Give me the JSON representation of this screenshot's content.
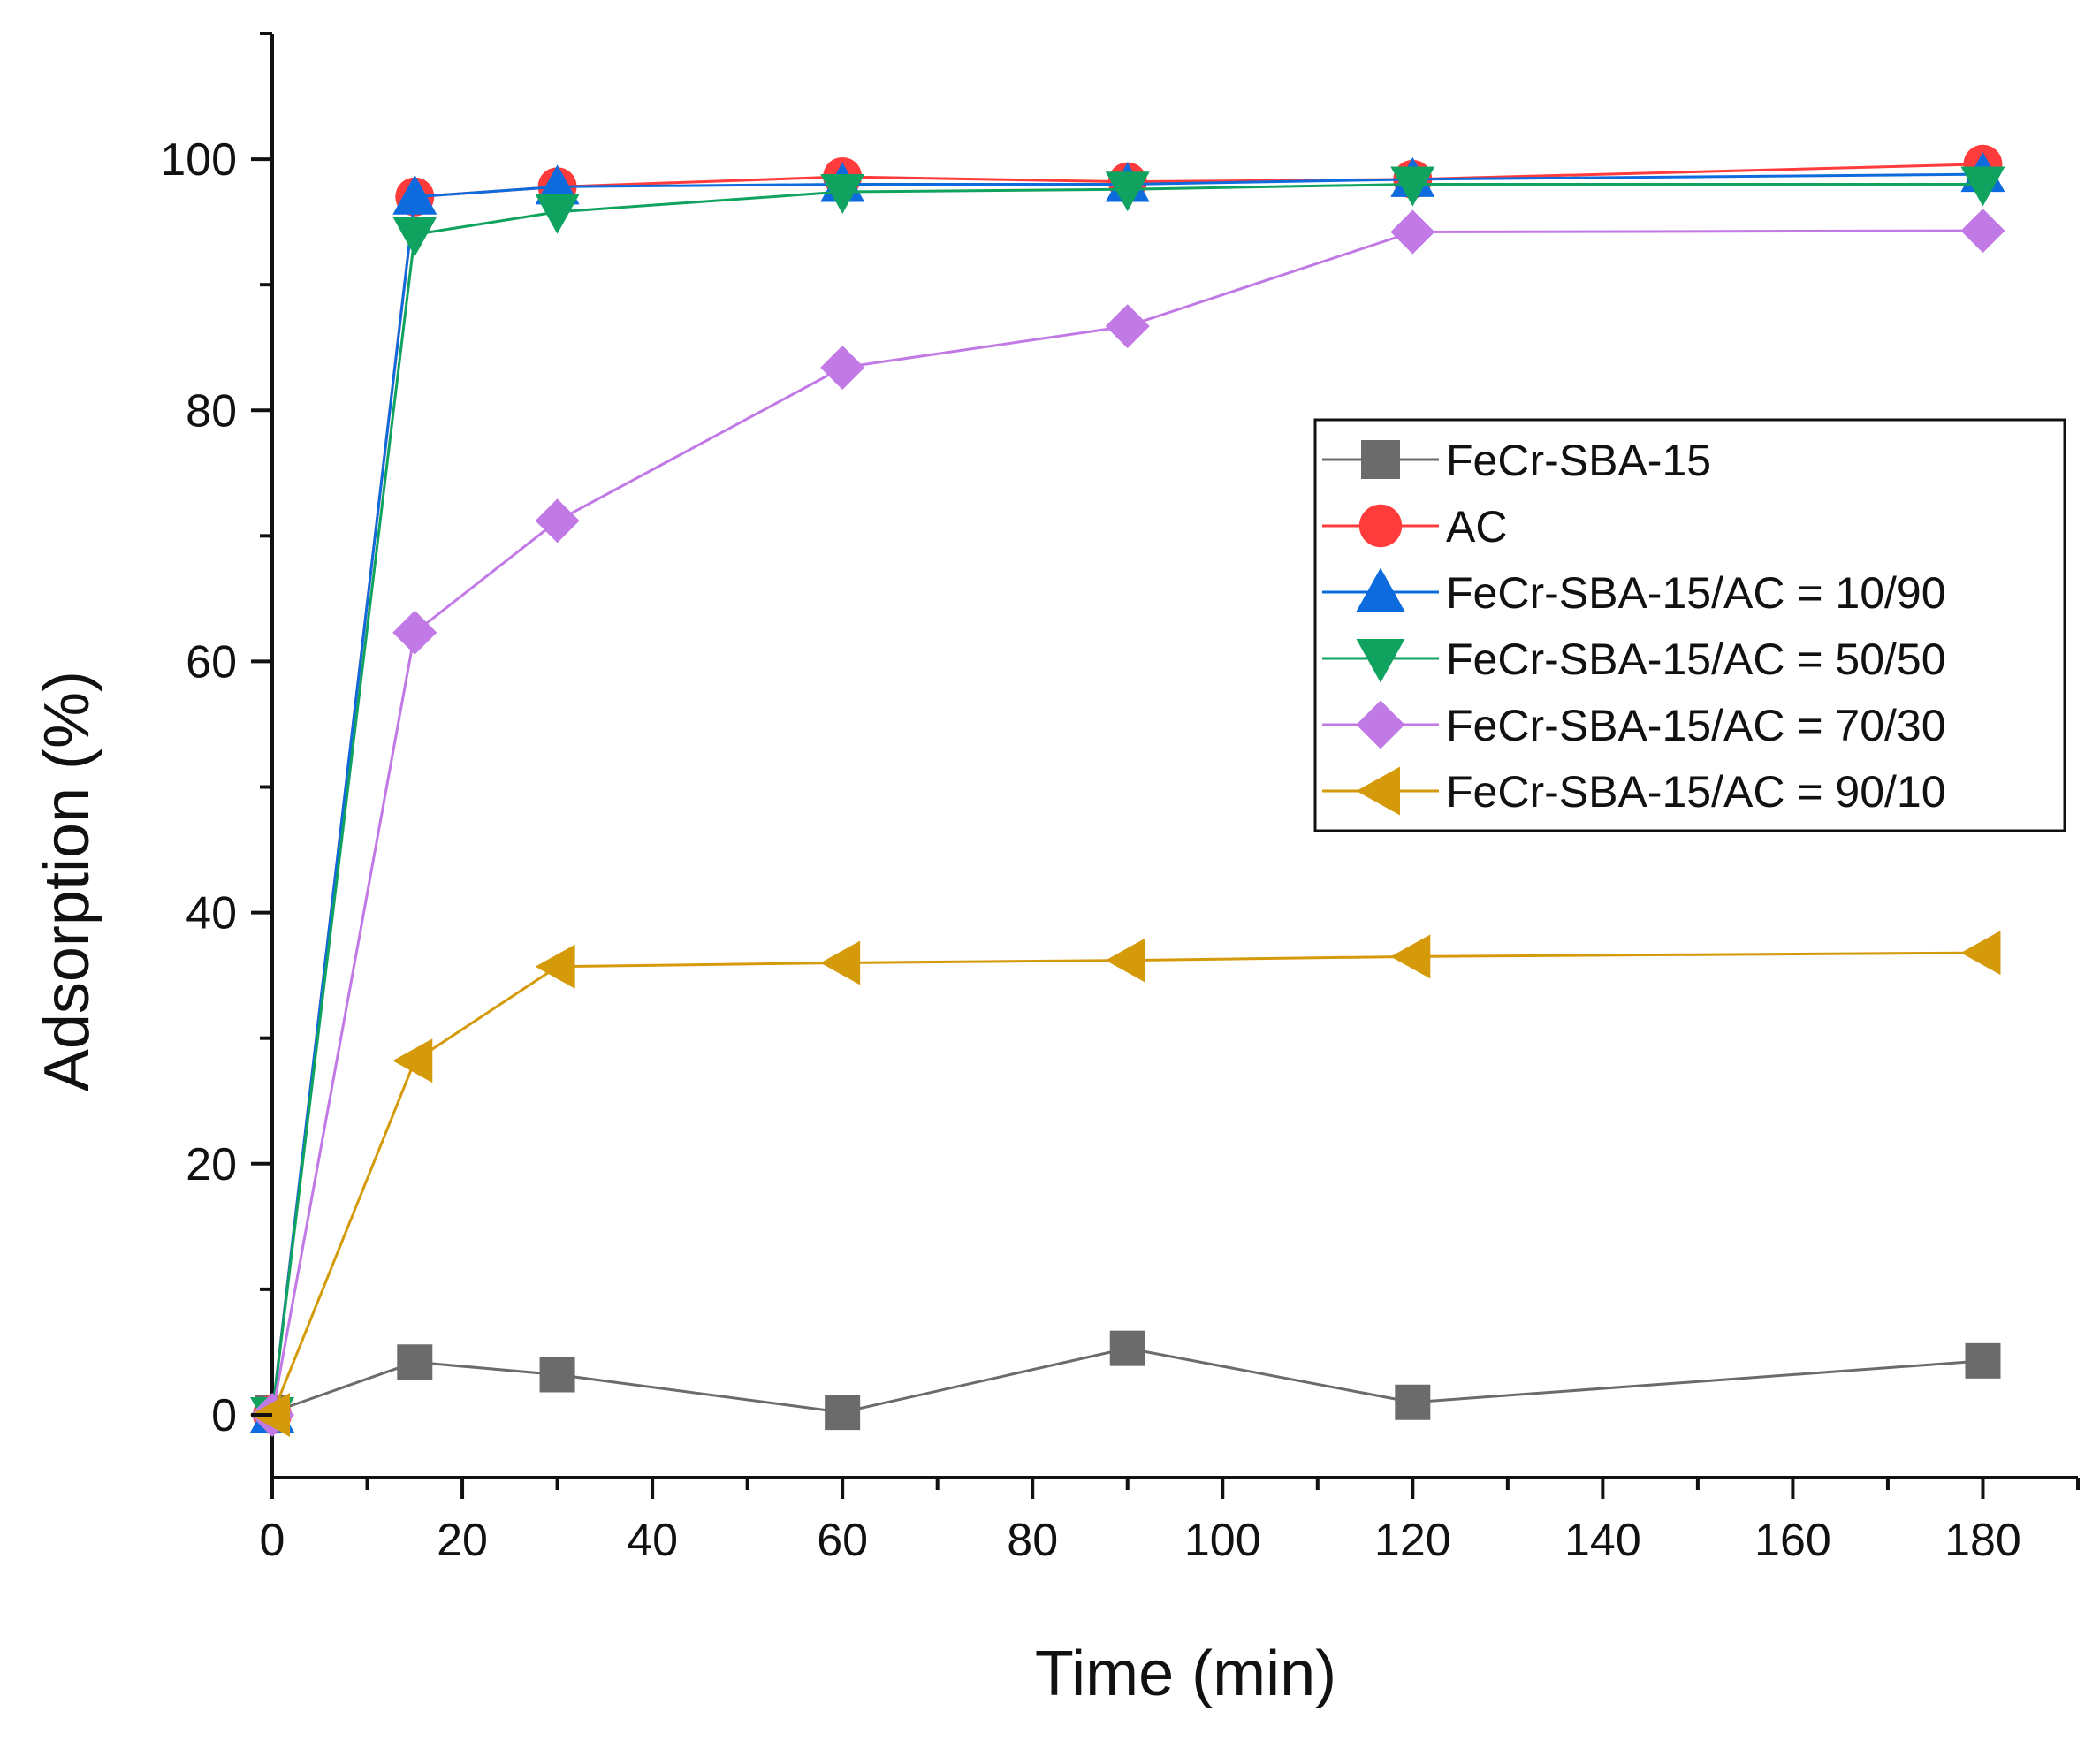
{
  "chart_data": {
    "type": "line",
    "title": "",
    "xlabel": "Time (min)",
    "ylabel": "Adsorption (%)",
    "xlim": [
      0,
      190
    ],
    "ylim": [
      -5,
      110
    ],
    "x_ticks": [
      0,
      20,
      40,
      60,
      80,
      100,
      120,
      140,
      160,
      180
    ],
    "y_ticks": [
      0,
      20,
      40,
      60,
      80,
      100
    ],
    "grid": false,
    "legend_position": "middle-right",
    "x": [
      0,
      15,
      30,
      60,
      90,
      120,
      180
    ],
    "series": [
      {
        "name": "FeCr-SBA-15",
        "color": "#6b6b6b",
        "marker": "square",
        "values": [
          0.2,
          4.2,
          3.2,
          0.2,
          5.3,
          1.0,
          4.3
        ]
      },
      {
        "name": "AC",
        "color": "#ff3b3b",
        "marker": "circle",
        "values": [
          0,
          97.0,
          97.8,
          98.6,
          98.2,
          98.4,
          99.6
        ]
      },
      {
        "name": "FeCr-SBA-15/AC = 10/90",
        "color": "#0d6bde",
        "marker": "triangle-up",
        "values": [
          0,
          97.0,
          97.8,
          98.0,
          98.0,
          98.4,
          98.8
        ]
      },
      {
        "name": "FeCr-SBA-15/AC = 50/50",
        "color": "#10a35f",
        "marker": "triangle-down",
        "values": [
          0,
          94.0,
          95.8,
          97.4,
          97.6,
          98.0,
          98.0
        ]
      },
      {
        "name": "FeCr-SBA-15/AC = 70/30",
        "color": "#c179e6",
        "marker": "diamond",
        "values": [
          0,
          62.3,
          71.2,
          83.4,
          86.7,
          94.2,
          94.3
        ]
      },
      {
        "name": "FeCr-SBA-15/AC = 90/10",
        "color": "#d49a0a",
        "marker": "triangle-left",
        "values": [
          0,
          28.2,
          35.7,
          36.0,
          36.2,
          36.5,
          36.8
        ]
      }
    ]
  }
}
